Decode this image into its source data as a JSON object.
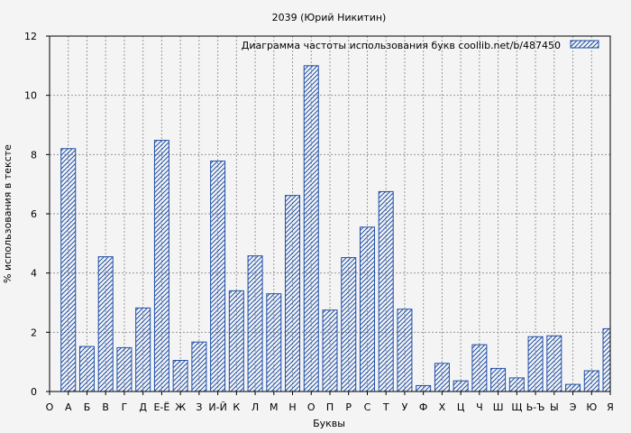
{
  "chart_data": {
    "type": "bar",
    "title": "2039 (Юрий Никитин)",
    "xlabel": "Буквы",
    "ylabel": "% использования в тексте",
    "ylim": [
      0,
      12
    ],
    "yticks": [
      "0",
      "2",
      "4",
      "6",
      "8",
      "10",
      "12"
    ],
    "grid": true,
    "legend_position": "top-right",
    "categories": [
      "О",
      "А",
      "Б",
      "В",
      "Г",
      "Д",
      "Е-Ё",
      "Ж",
      "З",
      "И-Й",
      "К",
      "Л",
      "М",
      "Н",
      "О",
      "П",
      "Р",
      "С",
      "Т",
      "У",
      "Ф",
      "Х",
      "Ц",
      "Ч",
      "Ш",
      "Щ",
      "Ь-Ъ",
      "Ы",
      "Э",
      "Ю",
      "Я"
    ],
    "series": [
      {
        "name": "Диаграмма частоты использования букв  coollib.net/b/487450",
        "color": "#1f4fa8",
        "values": [
          null,
          8.2,
          1.52,
          4.55,
          1.48,
          2.82,
          8.48,
          1.05,
          1.67,
          7.78,
          3.4,
          4.58,
          3.3,
          6.62,
          11.0,
          2.75,
          4.52,
          5.55,
          6.75,
          2.78,
          0.2,
          0.95,
          0.36,
          1.58,
          0.78,
          0.46,
          1.85,
          1.88,
          0.24,
          0.7,
          2.12
        ]
      }
    ]
  }
}
